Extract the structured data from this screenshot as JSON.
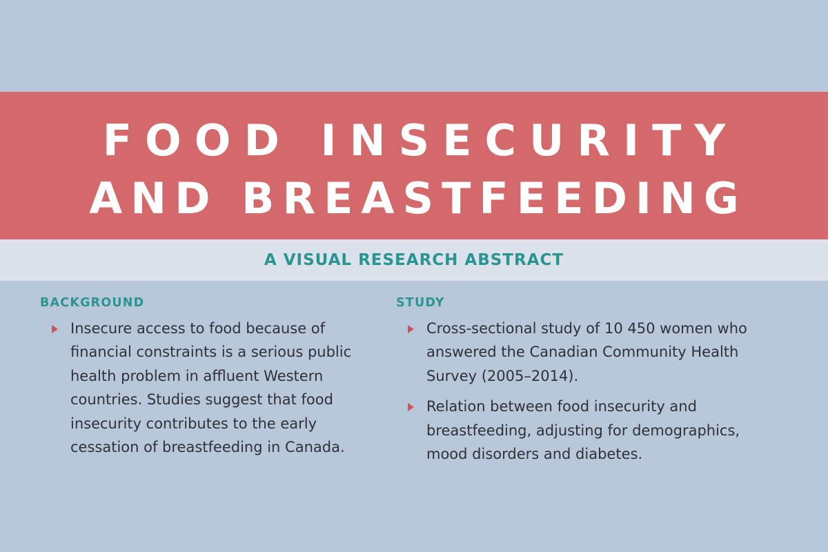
{
  "header": {
    "title_line_1": "FOOD INSECURITY",
    "title_line_2": "AND BREASTFEEDING",
    "subtitle": "A VISUAL RESEARCH ABSTRACT"
  },
  "background": {
    "heading": "BACKGROUND",
    "bullets": [
      "Insecure access to food because of financial constraints is a serious public health problem in affluent Western countries. Studies suggest that food insecurity contributes to the early cessation of breastfeeding in Canada."
    ]
  },
  "study": {
    "heading": "STUDY",
    "bullets": [
      "Cross-sectional study of 10 450 women who answered the Canadian Community Health Survey (2005–2014).",
      "Relation between food insecurity and breastfeeding, adjusting for demographics, mood disorders and diabetes."
    ]
  },
  "colors": {
    "page_background": "#b8c8da",
    "title_band": "#d4696c",
    "subtitle_band": "#dbe2ec",
    "accent_teal": "#2a9490",
    "bullet_marker": "#d4505a",
    "body_text": "#2e3138"
  },
  "icons": {
    "bullet_marker": "triangle-right-icon"
  }
}
